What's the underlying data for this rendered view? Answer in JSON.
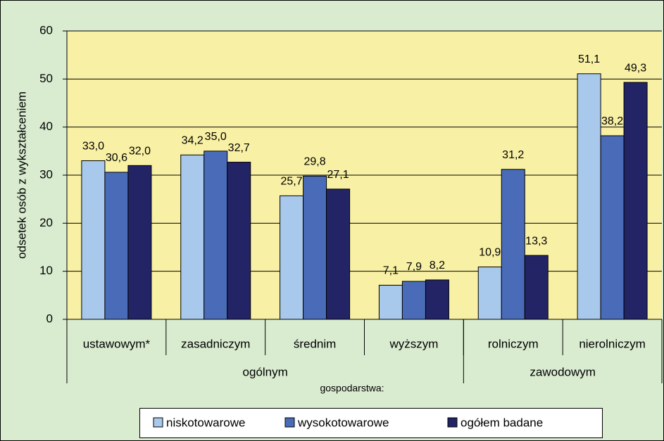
{
  "chart_data": {
    "type": "bar",
    "y_label": "odsetek osób z wykształceniem",
    "categories": [
      "ustawowym*",
      "zasadniczym",
      "średnim",
      "wyższym",
      "rolniczym",
      "nierolniczym"
    ],
    "group_labels": [
      "ogólnym",
      "zawodowym"
    ],
    "legend_title": "gospodarstwa:",
    "series": [
      {
        "name": "niskotowarowe",
        "color": "#a8c8ec",
        "values": [
          33.0,
          34.2,
          25.7,
          7.1,
          10.9,
          51.1
        ],
        "value_labels": [
          "33,0",
          "34,2",
          "25,7",
          "7,1",
          "10,9",
          "51,1"
        ]
      },
      {
        "name": "wysokotowarowe",
        "color": "#4a6cb8",
        "values": [
          30.6,
          35.0,
          29.8,
          7.9,
          31.2,
          38.2
        ],
        "value_labels": [
          "30,6",
          "35,0",
          "29,8",
          "7,9",
          "31,2",
          "38,2"
        ]
      },
      {
        "name": "ogółem badane",
        "color": "#222466",
        "values": [
          32.0,
          32.7,
          27.1,
          8.2,
          13.3,
          49.3
        ],
        "value_labels": [
          "32,0",
          "32,7",
          "27,1",
          "8,2",
          "13,3",
          "49,3"
        ]
      }
    ],
    "ylim": [
      0,
      60
    ],
    "yticks": [
      0,
      10,
      20,
      30,
      40,
      50,
      60
    ],
    "grid": true
  }
}
